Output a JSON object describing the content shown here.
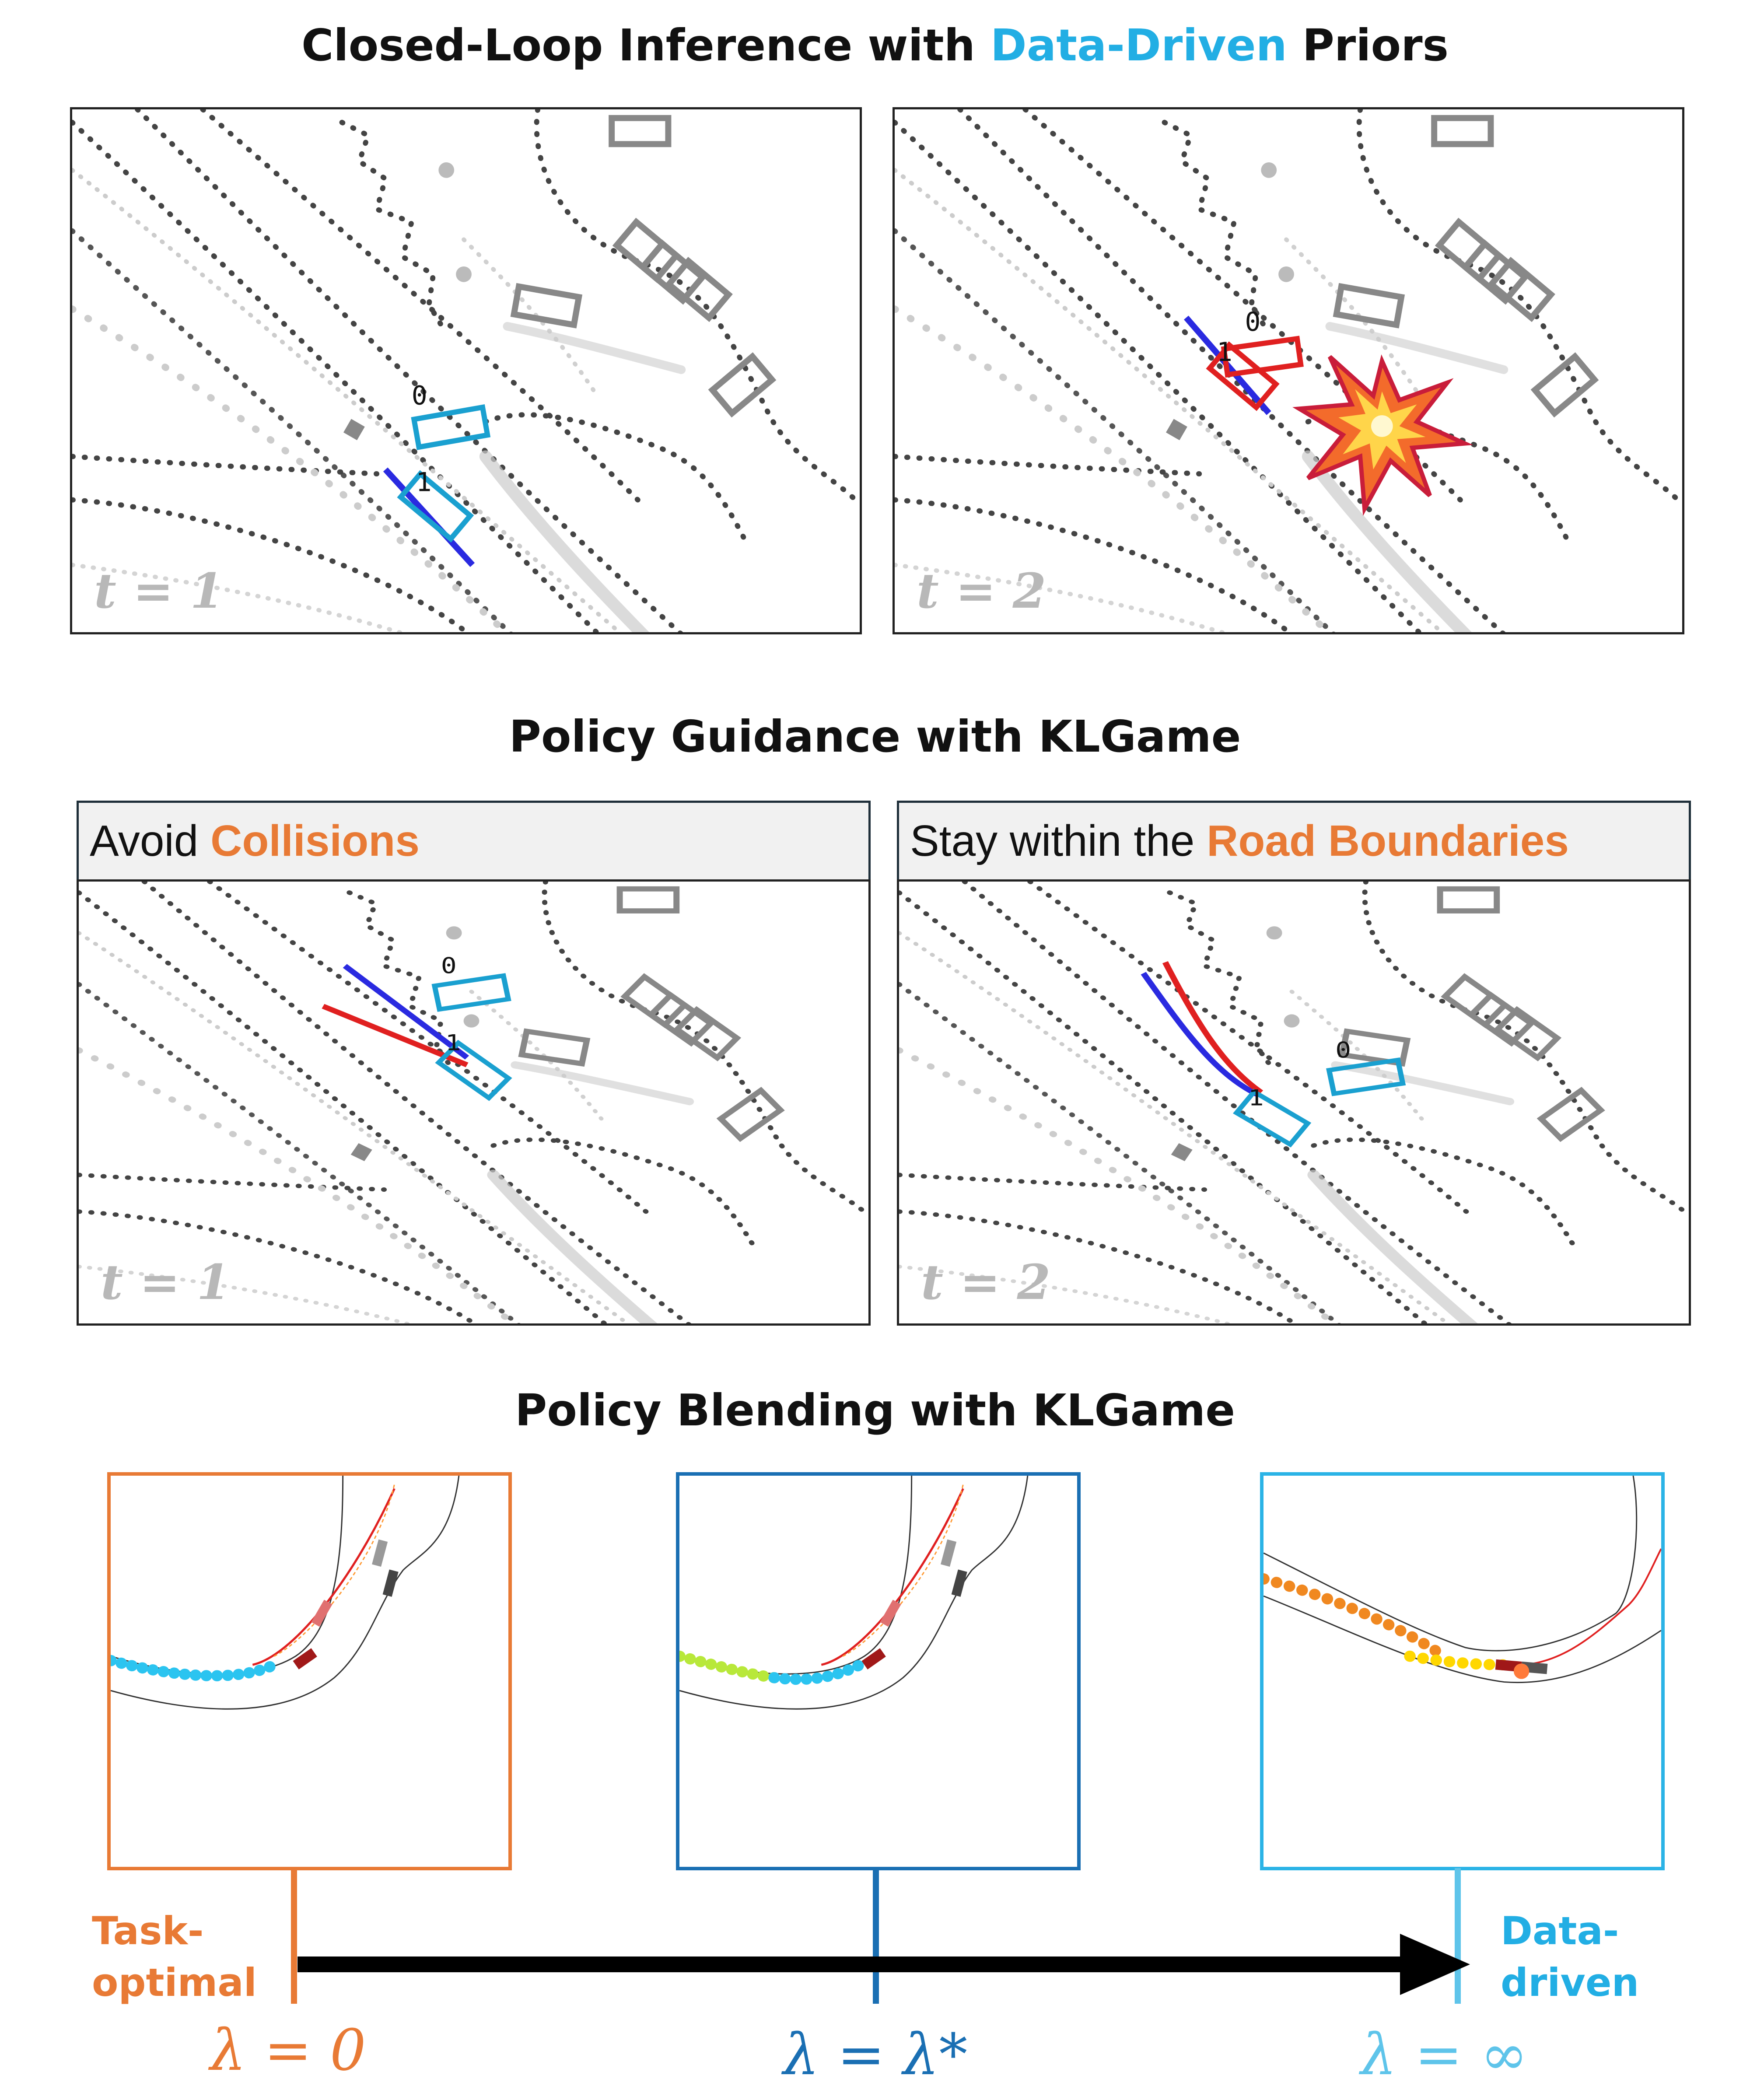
{
  "section1": {
    "title_pre": "Closed-Loop Inference with ",
    "title_highlight": "Data-Driven",
    "title_post": " Priors",
    "panels": [
      {
        "time_label": "t = 1",
        "agent_labels": [
          "0",
          "1"
        ]
      },
      {
        "time_label": "t = 2",
        "agent_labels": [
          "0",
          "1"
        ]
      }
    ]
  },
  "section2": {
    "title": "Policy Guidance with KLGame",
    "panels": [
      {
        "header_pre": "Avoid ",
        "header_highlight": "Collisions",
        "time_label": "t = 1",
        "agent_labels": [
          "0",
          "1"
        ]
      },
      {
        "header_pre": "Stay within the ",
        "header_highlight": "Road Boundaries",
        "time_label": "t = 2",
        "agent_labels": [
          "0",
          "1"
        ]
      }
    ]
  },
  "section3": {
    "title": "Policy Blending with KLGame",
    "left_label_line1": "Task-",
    "left_label_line2": "optimal",
    "right_label_line1": "Data-",
    "right_label_line2": "driven",
    "lambdas": [
      "λ = 0",
      "λ = λ*",
      "λ = ∞"
    ]
  },
  "colors": {
    "data_driven_blue": "#22aee4",
    "accent_orange": "#e87a35",
    "mid_blue": "#1a6fb3",
    "light_blue": "#2bb3e6",
    "agent_box": "#1aa0d0",
    "trajectory_red": "#e02020",
    "trajectory_blue": "#2a2ae0"
  }
}
